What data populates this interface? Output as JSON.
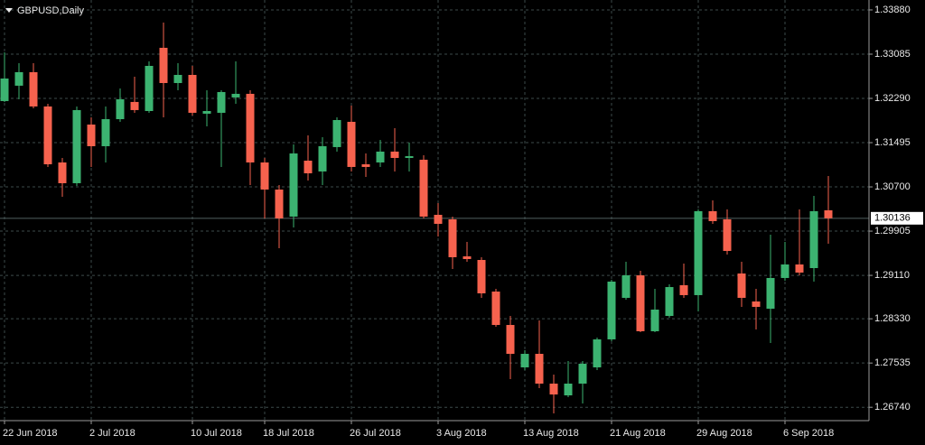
{
  "chart_data": {
    "type": "candlestick",
    "title": "GBPUSD,Daily",
    "categories": [
      "22 Jun 2018",
      null,
      null,
      null,
      null,
      null,
      "2 Jul 2018",
      null,
      null,
      null,
      null,
      null,
      null,
      "10 Jul 2018",
      null,
      null,
      null,
      null,
      "18 Jul 2018",
      null,
      null,
      null,
      null,
      null,
      "26 Jul 2018",
      null,
      null,
      null,
      null,
      null,
      "3 Aug 2018",
      null,
      null,
      null,
      null,
      null,
      "13 Aug 2018",
      null,
      null,
      null,
      null,
      null,
      "21 Aug 2018",
      null,
      null,
      null,
      null,
      null,
      "29 Aug 2018",
      null,
      null,
      null,
      null,
      null,
      "6 Sep 2018",
      null,
      null,
      null
    ],
    "open": [
      1.32242,
      1.32518,
      1.32761,
      1.32145,
      1.31139,
      1.30766,
      1.3182,
      1.31431,
      1.31917,
      1.32226,
      1.32063,
      1.33199,
      1.32566,
      1.32712,
      1.32015,
      1.32031,
      1.32307,
      1.32372,
      1.31139,
      1.30652,
      1.30166,
      1.31171,
      1.30977,
      1.31415,
      1.31869,
      1.31106,
      1.31139,
      1.31334,
      1.3122,
      1.31188,
      1.30198,
      1.30117,
      1.29452,
      1.29387,
      1.28819,
      1.28219,
      1.27457,
      1.277,
      1.27165,
      1.26954,
      1.27165,
      1.27457,
      1.2796,
      1.28706,
      1.29111,
      1.28106,
      1.28381,
      1.28933,
      1.28755,
      1.30263,
      1.30117,
      1.29144,
      1.28641,
      1.28511,
      1.29063,
      1.29306,
      1.29241,
      1.30279
    ],
    "high": [
      1.33118,
      1.32923,
      1.32923,
      1.32193,
      1.3122,
      1.32145,
      1.3195,
      1.32145,
      1.32469,
      1.3268,
      1.32955,
      1.33653,
      1.32923,
      1.32874,
      1.32436,
      1.32436,
      1.32955,
      1.32436,
      1.3122,
      1.30733,
      1.31463,
      1.31625,
      1.31593,
      1.3195,
      1.32161,
      1.31301,
      1.31544,
      1.31755,
      1.31496,
      1.31269,
      1.30409,
      1.30166,
      1.29712,
      1.29436,
      1.28868,
      1.28381,
      1.27765,
      1.283,
      1.27327,
      1.2757,
      1.2757,
      1.27992,
      1.2903,
      1.29355,
      1.29192,
      1.28868,
      1.28949,
      1.29322,
      1.30295,
      1.30458,
      1.30295,
      1.29355,
      1.28868,
      1.29841,
      1.29712,
      1.30295,
      1.30539,
      1.30896
    ],
    "low": [
      1.32226,
      1.32274,
      1.32112,
      1.31058,
      1.30523,
      1.30717,
      1.31058,
      1.31139,
      1.31869,
      1.32031,
      1.32031,
      1.3195,
      1.32436,
      1.31982,
      1.31788,
      1.31058,
      1.32193,
      1.30733,
      1.30133,
      1.29598,
      1.29971,
      1.30814,
      1.30733,
      1.31334,
      1.30977,
      1.30879,
      1.31058,
      1.30977,
      1.30977,
      1.30133,
      1.29809,
      1.29225,
      1.29355,
      1.28706,
      1.28187,
      1.27246,
      1.27408,
      1.27084,
      1.2663,
      1.26922,
      1.26808,
      1.27408,
      1.27927,
      1.28673,
      1.2809,
      1.2809,
      1.28349,
      1.28706,
      1.28463,
      1.30036,
      1.29484,
      1.28544,
      1.28138,
      1.27895,
      1.29014,
      1.29111,
      1.28998,
      1.29679
    ],
    "close": [
      1.32647,
      1.32761,
      1.32145,
      1.31106,
      1.30766,
      1.3208,
      1.31431,
      1.31917,
      1.32274,
      1.3208,
      1.32874,
      1.32566,
      1.32712,
      1.32031,
      1.32063,
      1.32404,
      1.32372,
      1.31139,
      1.30652,
      1.30133,
      1.31301,
      1.30944,
      1.31431,
      1.31901,
      1.31058,
      1.31058,
      1.31334,
      1.3122,
      1.31252,
      1.30166,
      1.30036,
      1.29436,
      1.29403,
      1.28787,
      1.28219,
      1.277,
      1.277,
      1.27165,
      1.2697,
      1.27165,
      1.27522,
      1.2796,
      1.28998,
      1.29111,
      1.28106,
      1.28495,
      1.289,
      1.28755,
      1.30263,
      1.30085,
      1.29549,
      1.28706,
      1.28544,
      1.29063,
      1.29306,
      1.2916,
      1.30263,
      1.30136
    ],
    "up_color": "#3cb371",
    "down_color": "#f6624e",
    "ylim": [
      1.265,
      1.34058
    ],
    "yticks": [
      {
        "value": 1.3388,
        "label": "1.33880"
      },
      {
        "value": 1.33085,
        "label": "1.33085"
      },
      {
        "value": 1.3229,
        "label": "1.32290"
      },
      {
        "value": 1.31495,
        "label": "1.31495"
      },
      {
        "value": 1.307,
        "label": "1.30700"
      },
      {
        "value": 1.29905,
        "label": "1.29905"
      },
      {
        "value": 1.2911,
        "label": "1.29110"
      },
      {
        "value": 1.2833,
        "label": "1.28330"
      },
      {
        "value": 1.27535,
        "label": "1.27535"
      },
      {
        "value": 1.2674,
        "label": "1.26740"
      }
    ],
    "current_price": {
      "value": 1.30136,
      "label": "1.30136"
    },
    "grid": true
  }
}
